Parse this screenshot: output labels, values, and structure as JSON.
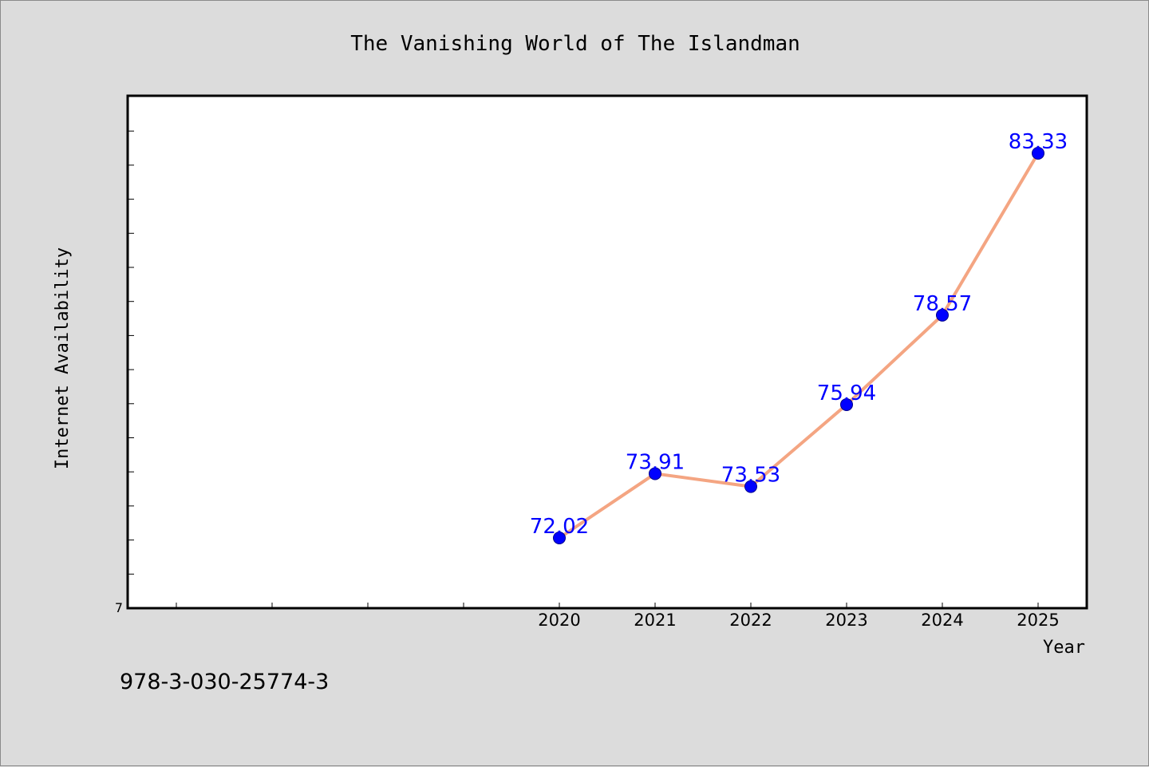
{
  "chart_data": {
    "type": "line",
    "title": "The Vanishing World of The Islandman",
    "xlabel": "Year",
    "ylabel": "Internet Availability",
    "x": [
      "2020",
      "2021",
      "2022",
      "2023",
      "2024",
      "2025"
    ],
    "series": [
      {
        "values": [
          72.02,
          73.91,
          73.53,
          75.94,
          78.57,
          83.33
        ],
        "line_color": "#f4a582",
        "marker_color": "#0000ff"
      }
    ],
    "data_labels": [
      "72.02",
      "73.91",
      "73.53",
      "75.94",
      "78.57",
      "83.33"
    ],
    "y_tick_labels": [
      "7"
    ],
    "grid": false,
    "annotation": "978-3-030-25774-3"
  },
  "colors": {
    "background": "#dcdcdc",
    "plot_area": "#ffffff",
    "label_text": "#0000ff"
  }
}
